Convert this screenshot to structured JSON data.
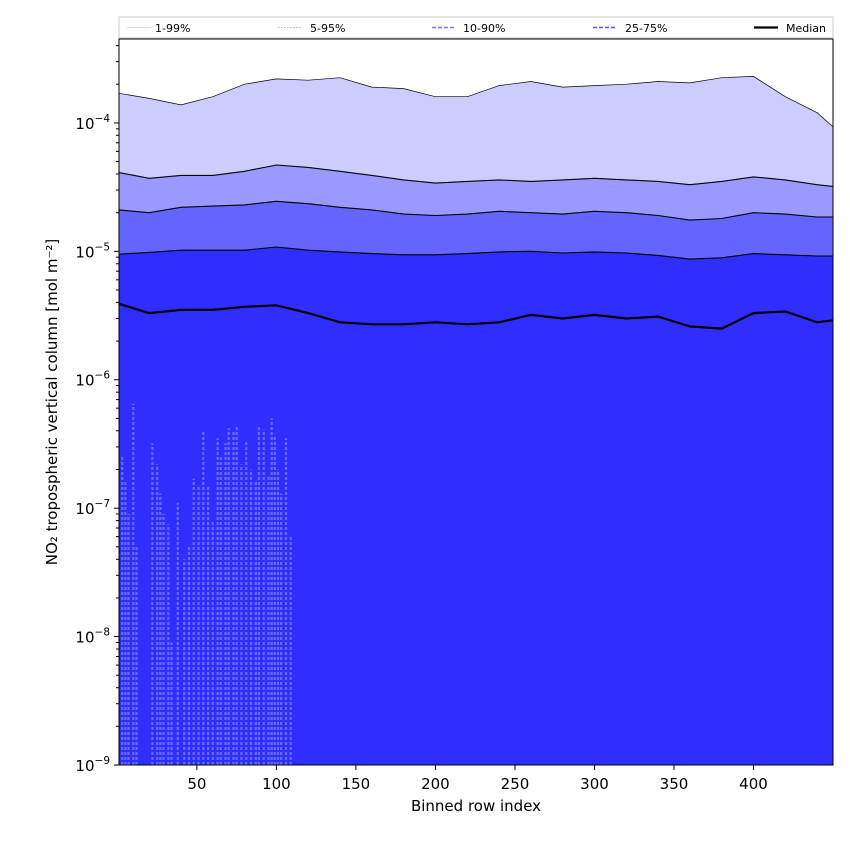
{
  "chart_data": {
    "type": "area",
    "xlabel": "Binned row index",
    "ylabel": "NO₂ tropospheric vertical column [mol m⁻²]",
    "xlim": [
      1,
      450
    ],
    "ylim": [
      1e-09,
      0.00045
    ],
    "yscale": "log",
    "x_ticks": [
      50,
      100,
      150,
      200,
      250,
      300,
      350,
      400
    ],
    "y_ticks": [
      {
        "value": 1e-09,
        "base": "10",
        "exp": "−9"
      },
      {
        "value": 1e-08,
        "base": "10",
        "exp": "−8"
      },
      {
        "value": 1e-07,
        "base": "10",
        "exp": "−7"
      },
      {
        "value": 1e-06,
        "base": "10",
        "exp": "−6"
      },
      {
        "value": 1e-05,
        "base": "10",
        "exp": "−5"
      },
      {
        "value": 0.0001,
        "base": "10",
        "exp": "−4"
      }
    ],
    "legend": {
      "placement": "top",
      "entries": [
        {
          "label": "1-99%",
          "color": "#ccccff",
          "style": "thin-solid"
        },
        {
          "label": "5-95%",
          "color": "#9999ff",
          "style": "thin-dotted"
        },
        {
          "label": "10-90%",
          "color": "#7777ff",
          "style": "dashed"
        },
        {
          "label": "25-75%",
          "color": "#5555ff",
          "style": "dashed"
        },
        {
          "label": "Median",
          "color": "#000000",
          "style": "solid-thick"
        }
      ]
    },
    "x": [
      1,
      20,
      40,
      60,
      80,
      100,
      120,
      140,
      160,
      180,
      200,
      220,
      240,
      260,
      280,
      300,
      320,
      340,
      360,
      380,
      400,
      420,
      440,
      450
    ],
    "series": [
      {
        "name": "p99",
        "values": [
          0.00017,
          0.000155,
          0.000138,
          0.00016,
          0.0002,
          0.00022,
          0.000215,
          0.000225,
          0.00019,
          0.000185,
          0.00016,
          0.00016,
          0.000195,
          0.00021,
          0.00019,
          0.000195,
          0.0002,
          0.00021,
          0.000205,
          0.000225,
          0.00023,
          0.00016,
          0.00012,
          9.3e-05
        ]
      },
      {
        "name": "p95",
        "values": [
          4.1e-05,
          3.7e-05,
          3.9e-05,
          3.9e-05,
          4.2e-05,
          4.7e-05,
          4.5e-05,
          4.2e-05,
          3.9e-05,
          3.6e-05,
          3.4e-05,
          3.5e-05,
          3.6e-05,
          3.5e-05,
          3.6e-05,
          3.7e-05,
          3.6e-05,
          3.5e-05,
          3.3e-05,
          3.5e-05,
          3.8e-05,
          3.6e-05,
          3.3e-05,
          3.2e-05
        ]
      },
      {
        "name": "p90",
        "values": [
          2.1e-05,
          2e-05,
          2.2e-05,
          2.25e-05,
          2.3e-05,
          2.45e-05,
          2.35e-05,
          2.2e-05,
          2.1e-05,
          1.95e-05,
          1.9e-05,
          1.95e-05,
          2.05e-05,
          2e-05,
          1.95e-05,
          2.05e-05,
          2e-05,
          1.9e-05,
          1.75e-05,
          1.8e-05,
          2e-05,
          1.95e-05,
          1.85e-05,
          1.85e-05
        ]
      },
      {
        "name": "p75",
        "values": [
          9.5e-06,
          9.8e-06,
          1.02e-05,
          1.02e-05,
          1.02e-05,
          1.08e-05,
          1.02e-05,
          9.9e-06,
          9.6e-06,
          9.4e-06,
          9.4e-06,
          9.6e-06,
          9.9e-06,
          1e-05,
          9.7e-06,
          9.9e-06,
          9.7e-06,
          9.3e-06,
          8.7e-06,
          8.9e-06,
          9.6e-06,
          9.4e-06,
          9.2e-06,
          9.2e-06
        ]
      },
      {
        "name": "Median",
        "values": [
          3.9e-06,
          3.3e-06,
          3.5e-06,
          3.5e-06,
          3.7e-06,
          3.8e-06,
          3.3e-06,
          2.8e-06,
          2.7e-06,
          2.7e-06,
          2.8e-06,
          2.7e-06,
          2.8e-06,
          3.2e-06,
          3e-06,
          3.2e-06,
          3e-06,
          3.1e-06,
          2.6e-06,
          2.5e-06,
          3.3e-06,
          3.4e-06,
          2.8e-06,
          2.9e-06
        ]
      }
    ],
    "lower_spikes": [
      {
        "x": 3,
        "y": 2.5e-07
      },
      {
        "x": 5,
        "y": 1.6e-07
      },
      {
        "x": 7,
        "y": 9e-08
      },
      {
        "x": 10,
        "y": 6.5e-07
      },
      {
        "x": 12,
        "y": 5e-08
      },
      {
        "x": 22,
        "y": 3.2e-07
      },
      {
        "x": 25,
        "y": 2.2e-07
      },
      {
        "x": 27,
        "y": 1.3e-07
      },
      {
        "x": 29,
        "y": 9e-08
      },
      {
        "x": 32,
        "y": 7.5e-08
      },
      {
        "x": 34,
        "y": 9e-09
      },
      {
        "x": 38,
        "y": 1.1e-07
      },
      {
        "x": 42,
        "y": 4e-08
      },
      {
        "x": 45,
        "y": 5e-08
      },
      {
        "x": 48,
        "y": 1.7e-07
      },
      {
        "x": 51,
        "y": 1.5e-07
      },
      {
        "x": 54,
        "y": 4e-07
      },
      {
        "x": 57,
        "y": 1.5e-07
      },
      {
        "x": 60,
        "y": 8e-08
      },
      {
        "x": 63,
        "y": 3.5e-07
      },
      {
        "x": 65,
        "y": 2.5e-07
      },
      {
        "x": 68,
        "y": 3.2e-07
      },
      {
        "x": 70,
        "y": 4.2e-07
      },
      {
        "x": 73,
        "y": 4e-07
      },
      {
        "x": 75,
        "y": 4.3e-07
      },
      {
        "x": 78,
        "y": 2.2e-07
      },
      {
        "x": 81,
        "y": 3.4e-07
      },
      {
        "x": 84,
        "y": 2e-07
      },
      {
        "x": 87,
        "y": 1.6e-07
      },
      {
        "x": 89,
        "y": 4.3e-07
      },
      {
        "x": 92,
        "y": 4.1e-07
      },
      {
        "x": 95,
        "y": 1.8e-07
      },
      {
        "x": 97,
        "y": 5e-07
      },
      {
        "x": 99,
        "y": 3.6e-07
      },
      {
        "x": 101,
        "y": 2e-07
      },
      {
        "x": 103,
        "y": 1.3e-07
      },
      {
        "x": 106,
        "y": 3.5e-07
      },
      {
        "x": 109,
        "y": 6e-08
      }
    ],
    "fill_colors": {
      "band_1_99": "#ccccff",
      "band_5_95": "#9999ff",
      "band_10_90": "#6464ff",
      "band_25_75": "#2e2eff",
      "spike_color": "#6a6aff",
      "median_color": "#000000"
    },
    "grid": false
  }
}
